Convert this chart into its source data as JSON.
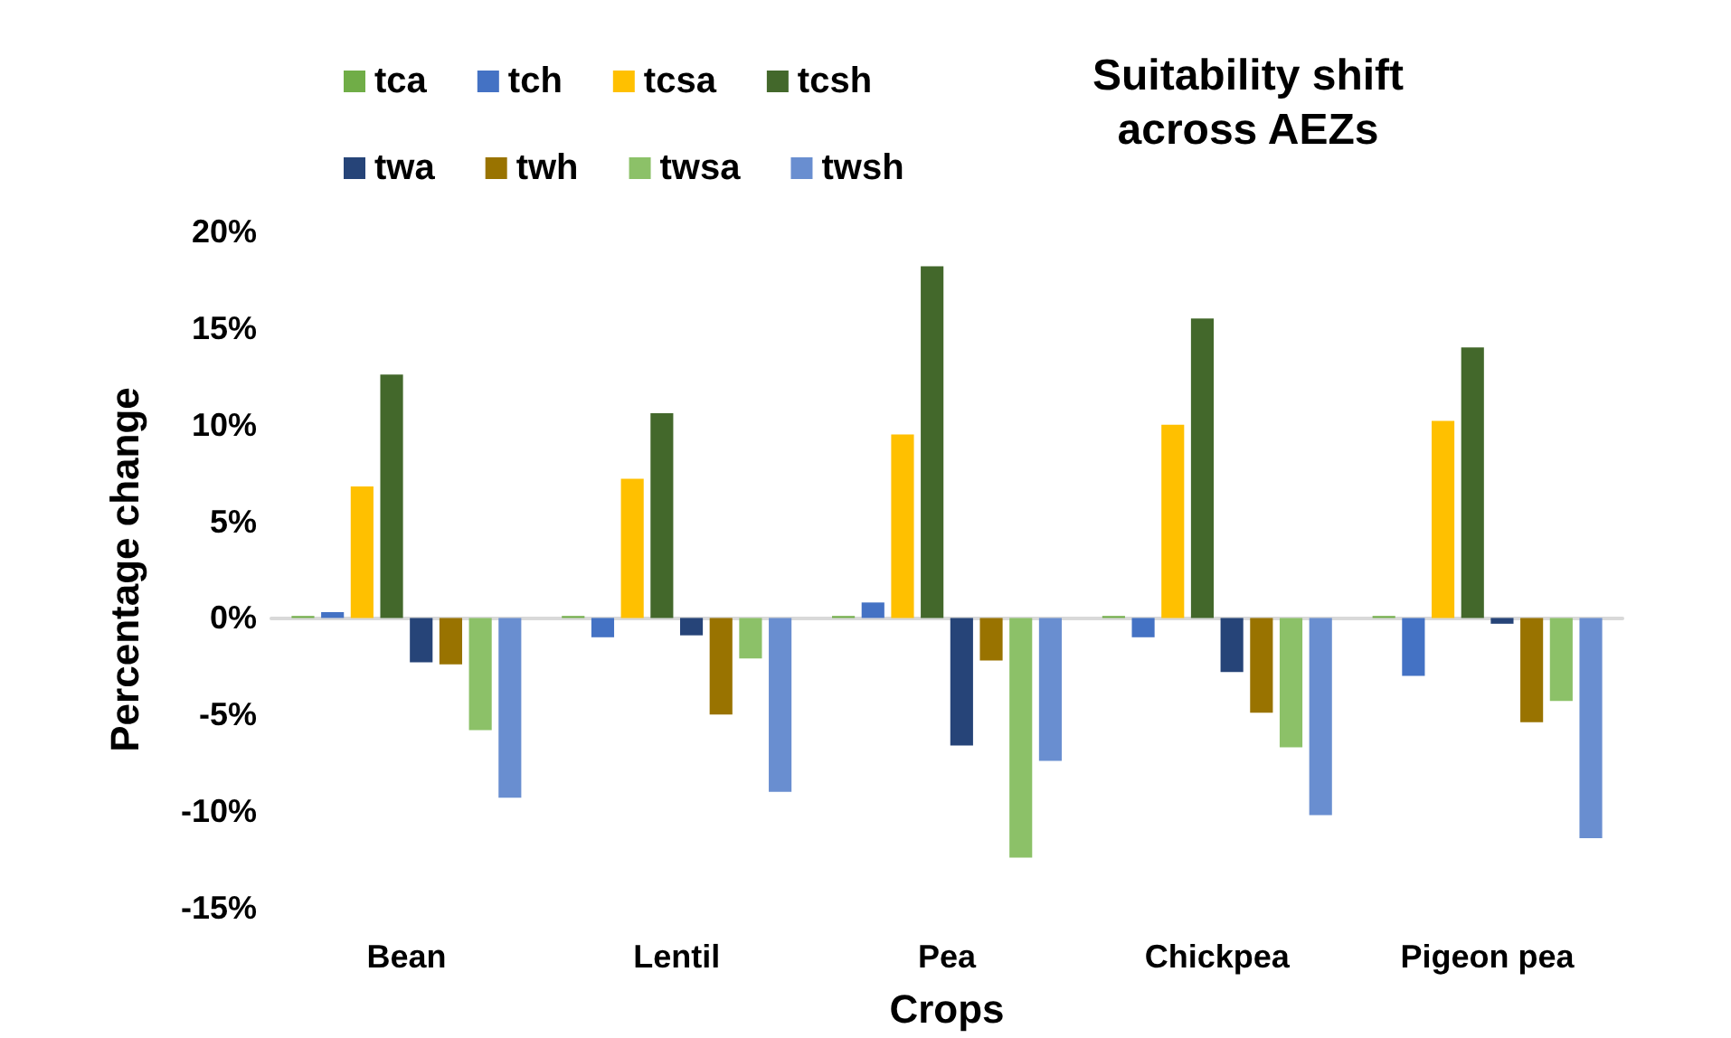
{
  "chart_data": {
    "type": "bar",
    "title": "Suitability shift\nacross AEZs",
    "xlabel": "Crops",
    "ylabel": "Percentage change",
    "categories": [
      "Bean",
      "Lentil",
      "Pea",
      "Chickpea",
      "Pigeon pea"
    ],
    "series": [
      {
        "name": "tca",
        "color": "#70ad47",
        "values": [
          0.1,
          0.1,
          0.1,
          0.1,
          0.1
        ]
      },
      {
        "name": "tch",
        "color": "#4472c4",
        "values": [
          0.3,
          -1.0,
          0.8,
          -1.0,
          -3.0
        ]
      },
      {
        "name": "tcsa",
        "color": "#ffc000",
        "values": [
          6.8,
          7.2,
          9.5,
          10.0,
          10.2
        ]
      },
      {
        "name": "tcsh",
        "color": "#43682b",
        "values": [
          12.6,
          10.6,
          18.2,
          15.5,
          14.0
        ]
      },
      {
        "name": "twa",
        "color": "#264478",
        "values": [
          -2.3,
          -0.9,
          -6.6,
          -2.8,
          -0.3
        ]
      },
      {
        "name": "twh",
        "color": "#997300",
        "values": [
          -2.4,
          -5.0,
          -2.2,
          -4.9,
          -5.4
        ]
      },
      {
        "name": "twsa",
        "color": "#8cc168",
        "values": [
          -5.8,
          -2.1,
          -12.4,
          -6.7,
          -4.3
        ]
      },
      {
        "name": "twsh",
        "color": "#698ed0",
        "values": [
          -9.3,
          -9.0,
          -7.4,
          -10.2,
          -11.4
        ]
      }
    ],
    "ylim": [
      -15,
      20
    ],
    "yticks": [
      {
        "value": -15,
        "label": "-15%"
      },
      {
        "value": -10,
        "label": "-10%"
      },
      {
        "value": -5,
        "label": "-5%"
      },
      {
        "value": 0,
        "label": "0%"
      },
      {
        "value": 5,
        "label": "5%"
      },
      {
        "value": 10,
        "label": "10%"
      },
      {
        "value": 15,
        "label": "15%"
      },
      {
        "value": 20,
        "label": "20%"
      }
    ],
    "legend": "top left"
  }
}
